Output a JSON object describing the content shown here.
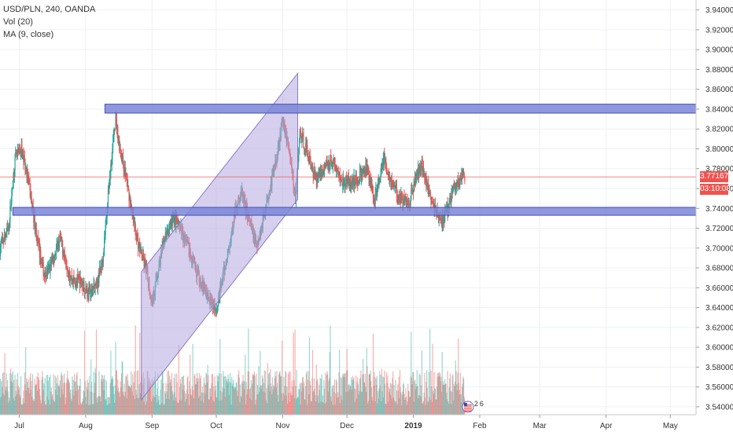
{
  "legend": {
    "symbol": "USD/PLN, 240, OANDA",
    "volume": "Vol (20)",
    "ma": "MA (9, close)"
  },
  "price_tags": {
    "last_price": "3.77167",
    "countdown": "03:10:08"
  },
  "colors": {
    "up": "#26a69a",
    "down": "#ef5350",
    "zone_fill": "#7b86d8",
    "zone_stroke": "#3f51b5",
    "channel_fill": "#b7a8e0",
    "last_line": "#ef5350",
    "countdown_bg": "#ef5350",
    "grid": "#eef0f3"
  },
  "event_marker": {
    "flag_icon": "us-flag-icon",
    "count_a": "2",
    "count_b": "6"
  },
  "chart_data": {
    "type": "candlestick",
    "y_axis": {
      "ticks": [
        "3.94000",
        "3.92000",
        "3.90000",
        "3.88000",
        "3.86000",
        "3.84000",
        "3.82000",
        "3.80000",
        "3.78000",
        "3.76000",
        "3.74000",
        "3.72000",
        "3.70000",
        "3.68000",
        "3.66000",
        "3.64000",
        "3.62000",
        "3.60000",
        "3.58000",
        "3.56000",
        "3.54000"
      ],
      "range": [
        3.532,
        3.95
      ]
    },
    "x_axis": {
      "labels": [
        "Jul",
        "Aug",
        "Sep",
        "Oct",
        "Nov",
        "Dec",
        "2019",
        "Feb",
        "Mar",
        "Apr",
        "May"
      ],
      "label_dates": [
        "2018-07-01",
        "2018-08-01",
        "2018-09-01",
        "2018-10-01",
        "2018-11-01",
        "2018-12-01",
        "2019-01-01",
        "2019-02-01",
        "2019-03-01",
        "2019-04-01",
        "2019-05-01"
      ],
      "range": [
        "2018-06-22",
        "2019-05-13"
      ]
    },
    "horizontal_zones": [
      {
        "from": 3.836,
        "to": 3.845,
        "start": "2018-08-10"
      },
      {
        "from": 3.733,
        "to": 3.741,
        "start": "2018-06-28"
      }
    ],
    "channel": {
      "upper": [
        [
          "2018-08-27",
          3.676
        ],
        [
          "2018-11-08",
          3.876
        ]
      ],
      "lower": [
        [
          "2018-08-27",
          3.547
        ],
        [
          "2018-11-08",
          3.749
        ]
      ]
    },
    "last_price": 3.77167,
    "price_path": [
      [
        "2018-06-22",
        3.7
      ],
      [
        "2018-06-26",
        3.72
      ],
      [
        "2018-06-29",
        3.79
      ],
      [
        "2018-07-02",
        3.8
      ],
      [
        "2018-07-05",
        3.77
      ],
      [
        "2018-07-10",
        3.7
      ],
      [
        "2018-07-13",
        3.67
      ],
      [
        "2018-07-17",
        3.69
      ],
      [
        "2018-07-20",
        3.71
      ],
      [
        "2018-07-25",
        3.67
      ],
      [
        "2018-07-30",
        3.665
      ],
      [
        "2018-08-02",
        3.655
      ],
      [
        "2018-08-06",
        3.66
      ],
      [
        "2018-08-09",
        3.69
      ],
      [
        "2018-08-11",
        3.74
      ],
      [
        "2018-08-13",
        3.79
      ],
      [
        "2018-08-15",
        3.83
      ],
      [
        "2018-08-17",
        3.8
      ],
      [
        "2018-08-20",
        3.77
      ],
      [
        "2018-08-23",
        3.73
      ],
      [
        "2018-08-26",
        3.7
      ],
      [
        "2018-08-29",
        3.68
      ],
      [
        "2018-09-01",
        3.645
      ],
      [
        "2018-09-04",
        3.68
      ],
      [
        "2018-09-07",
        3.71
      ],
      [
        "2018-09-11",
        3.73
      ],
      [
        "2018-09-14",
        3.72
      ],
      [
        "2018-09-18",
        3.7
      ],
      [
        "2018-09-21",
        3.68
      ],
      [
        "2018-09-25",
        3.66
      ],
      [
        "2018-09-28",
        3.65
      ],
      [
        "2018-10-01",
        3.64
      ],
      [
        "2018-10-04",
        3.67
      ],
      [
        "2018-10-07",
        3.7
      ],
      [
        "2018-10-10",
        3.74
      ],
      [
        "2018-10-13",
        3.755
      ],
      [
        "2018-10-16",
        3.73
      ],
      [
        "2018-10-20",
        3.7
      ],
      [
        "2018-10-23",
        3.73
      ],
      [
        "2018-10-26",
        3.76
      ],
      [
        "2018-10-29",
        3.79
      ],
      [
        "2018-11-01",
        3.83
      ],
      [
        "2018-11-04",
        3.8
      ],
      [
        "2018-11-07",
        3.75
      ],
      [
        "2018-11-09",
        3.815
      ],
      [
        "2018-11-12",
        3.8
      ],
      [
        "2018-11-16",
        3.77
      ],
      [
        "2018-11-20",
        3.78
      ],
      [
        "2018-11-24",
        3.79
      ],
      [
        "2018-11-28",
        3.77
      ],
      [
        "2018-12-02",
        3.765
      ],
      [
        "2018-12-06",
        3.77
      ],
      [
        "2018-12-10",
        3.78
      ],
      [
        "2018-12-14",
        3.75
      ],
      [
        "2018-12-18",
        3.79
      ],
      [
        "2018-12-22",
        3.765
      ],
      [
        "2018-12-26",
        3.75
      ],
      [
        "2018-12-30",
        3.745
      ],
      [
        "2019-01-02",
        3.77
      ],
      [
        "2019-01-05",
        3.785
      ],
      [
        "2019-01-09",
        3.75
      ],
      [
        "2019-01-12",
        3.735
      ],
      [
        "2019-01-14",
        3.725
      ],
      [
        "2019-01-17",
        3.74
      ],
      [
        "2019-01-20",
        3.76
      ],
      [
        "2019-01-23",
        3.77
      ],
      [
        "2019-01-25",
        3.77167
      ]
    ]
  }
}
